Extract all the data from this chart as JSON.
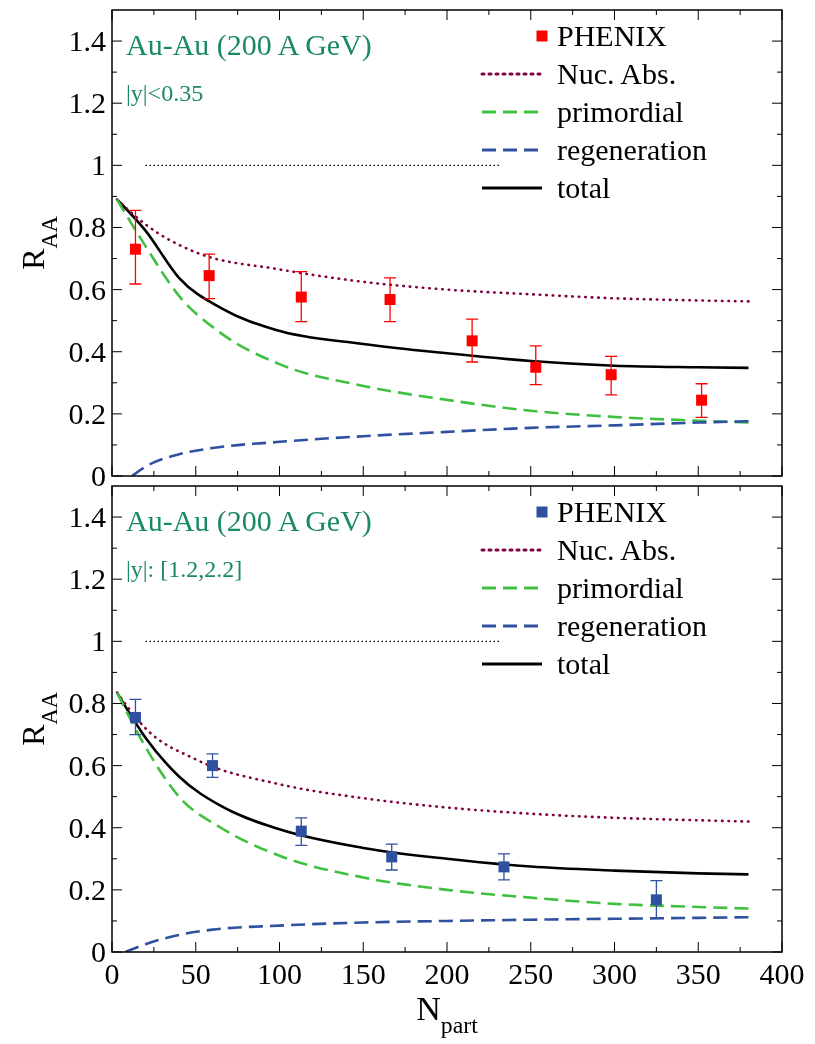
{
  "chart_data": [
    {
      "type": "line",
      "ylabel": "R$_{AA}$",
      "xlim": [
        0,
        400
      ],
      "ylim": [
        0,
        1.5
      ],
      "tick_labels": "y",
      "legend": "top right",
      "xticks": [
        0,
        {
          "value": 25,
          "label": null
        },
        50,
        {
          "value": 75,
          "label": null
        },
        100,
        {
          "value": 125,
          "label": null
        },
        150,
        {
          "value": 175,
          "label": null
        },
        200,
        {
          "value": 225,
          "label": null
        },
        250,
        {
          "value": 275,
          "label": null
        },
        300,
        {
          "value": 325,
          "label": null
        },
        350,
        {
          "value": 375,
          "label": null
        },
        400
      ],
      "yticks": [
        0,
        {
          "value": 0.1,
          "label": null
        },
        0.2,
        {
          "value": 0.3,
          "label": null
        },
        0.4,
        {
          "value": 0.5,
          "label": null
        },
        0.6,
        {
          "value": 0.7,
          "label": null
        },
        0.8,
        {
          "value": 0.9,
          "label": null
        },
        1,
        {
          "value": 1.1,
          "label": null
        },
        1.2,
        {
          "value": 1.3,
          "label": null
        },
        1.4
      ],
      "annotations": [
        "Au-Au (200 A GeV)",
        "|y|<0.35"
      ],
      "ref_lines": [
        {
          "axis": "y",
          "value": 1,
          "label": null,
          "color": "#000000",
          "line_style": "dotted"
        }
      ],
      "series": [
        {
          "name": "PHENIX",
          "type": "scatter",
          "marker": "square",
          "color": "#ff0000",
          "x": [
            14,
            58,
            113,
            166,
            215,
            253,
            298,
            352
          ],
          "values": [
            0.73,
            0.645,
            0.576,
            0.568,
            0.435,
            0.35,
            0.326,
            0.244
          ],
          "errors": [
            [
              0.618,
              0.855
            ],
            [
              0.571,
              0.714
            ],
            [
              0.497,
              0.658
            ],
            [
              0.497,
              0.638
            ],
            [
              0.367,
              0.505
            ],
            [
              0.294,
              0.419
            ],
            [
              0.261,
              0.385
            ],
            [
              0.189,
              0.297
            ]
          ]
        },
        {
          "name": "Nuc. Abs.",
          "type": "line",
          "line_style": "dotted",
          "color": "#800040",
          "x": [
            3,
            20,
            50,
            100,
            150,
            200,
            250,
            300,
            350,
            380
          ],
          "values": [
            0.89,
            0.81,
            0.72,
            0.665,
            0.625,
            0.6,
            0.585,
            0.572,
            0.565,
            0.562
          ]
        },
        {
          "name": "primordial",
          "type": "line",
          "line_style": "dashed",
          "color": "#40c040",
          "x": [
            3,
            20,
            40,
            65,
            100,
            150,
            200,
            250,
            300,
            350,
            380
          ],
          "values": [
            0.89,
            0.74,
            0.58,
            0.46,
            0.36,
            0.29,
            0.245,
            0.21,
            0.19,
            0.178,
            0.172
          ]
        },
        {
          "name": "regeneration",
          "type": "line",
          "line_style": "dashed",
          "color": "#3050a0",
          "x": [
            12,
            20,
            40,
            60,
            100,
            150,
            200,
            250,
            300,
            350,
            380
          ],
          "values": [
            0,
            0.03,
            0.07,
            0.09,
            0.11,
            0.128,
            0.142,
            0.155,
            0.163,
            0.172,
            0.176
          ]
        },
        {
          "name": "total",
          "type": "line",
          "line_style": "solid",
          "color": "#000000",
          "x": [
            3,
            20,
            40,
            66,
            98,
            150,
            200,
            250,
            300,
            350,
            380
          ],
          "values": [
            0.89,
            0.79,
            0.638,
            0.538,
            0.47,
            0.425,
            0.395,
            0.37,
            0.355,
            0.35,
            0.348
          ]
        }
      ]
    },
    {
      "type": "line",
      "ylabel": "R$_{AA}$",
      "xlabel": "N$_{part}$",
      "xlim": [
        0,
        400
      ],
      "ylim": [
        0,
        1.5
      ],
      "legend": "top right",
      "xticks": [
        0,
        {
          "value": 25,
          "label": null
        },
        50,
        {
          "value": 75,
          "label": null
        },
        100,
        {
          "value": 125,
          "label": null
        },
        150,
        {
          "value": 175,
          "label": null
        },
        200,
        {
          "value": 225,
          "label": null
        },
        250,
        {
          "value": 275,
          "label": null
        },
        300,
        {
          "value": 325,
          "label": null
        },
        350,
        {
          "value": 375,
          "label": null
        },
        400
      ],
      "yticks": [
        0,
        {
          "value": 0.1,
          "label": null
        },
        0.2,
        {
          "value": 0.3,
          "label": null
        },
        0.4,
        {
          "value": 0.5,
          "label": null
        },
        0.6,
        {
          "value": 0.7,
          "label": null
        },
        0.8,
        {
          "value": 0.9,
          "label": null
        },
        1,
        {
          "value": 1.1,
          "label": null
        },
        1.2,
        {
          "value": 1.3,
          "label": null
        },
        1.4
      ],
      "annotations": [
        "Au-Au (200 A GeV)",
        "|y|: [1.2,2.2]"
      ],
      "ref_lines": [
        {
          "axis": "y",
          "value": 1,
          "label": null,
          "color": "#000000",
          "line_style": "dotted"
        }
      ],
      "series": [
        {
          "name": "PHENIX",
          "type": "scatter",
          "marker": "square",
          "color": "#3050a0",
          "x": [
            14,
            60,
            113,
            167,
            234,
            325
          ],
          "values": [
            0.755,
            0.6,
            0.389,
            0.306,
            0.274,
            0.168
          ],
          "errors": [
            [
              0.7,
              0.813
            ],
            [
              0.562,
              0.638
            ],
            [
              0.343,
              0.432
            ],
            [
              0.264,
              0.347
            ],
            [
              0.232,
              0.316
            ],
            [
              0.108,
              0.23
            ]
          ]
        },
        {
          "name": "Nuc. Abs.",
          "type": "line",
          "line_style": "dotted",
          "color": "#800040",
          "x": [
            3,
            20,
            50,
            100,
            150,
            200,
            250,
            300,
            350,
            380
          ],
          "values": [
            0.835,
            0.72,
            0.62,
            0.54,
            0.495,
            0.465,
            0.445,
            0.432,
            0.424,
            0.42
          ]
        },
        {
          "name": "primordial",
          "type": "line",
          "line_style": "dashed",
          "color": "#40c040",
          "x": [
            3,
            20,
            40,
            65,
            100,
            150,
            200,
            250,
            300,
            350,
            380
          ],
          "values": [
            0.835,
            0.66,
            0.5,
            0.4,
            0.31,
            0.24,
            0.2,
            0.175,
            0.155,
            0.145,
            0.14
          ]
        },
        {
          "name": "regeneration",
          "type": "line",
          "line_style": "dashed",
          "color": "#3050a0",
          "x": [
            8,
            20,
            40,
            60,
            100,
            150,
            200,
            250,
            300,
            350,
            380
          ],
          "values": [
            0,
            0.025,
            0.055,
            0.072,
            0.085,
            0.095,
            0.1,
            0.104,
            0.107,
            0.11,
            0.112
          ]
        },
        {
          "name": "total",
          "type": "line",
          "line_style": "solid",
          "color": "#000000",
          "x": [
            3,
            20,
            40,
            65,
            100,
            150,
            200,
            250,
            300,
            350,
            380
          ],
          "values": [
            0.835,
            0.69,
            0.565,
            0.47,
            0.395,
            0.335,
            0.3,
            0.275,
            0.262,
            0.253,
            0.25
          ]
        }
      ]
    }
  ]
}
